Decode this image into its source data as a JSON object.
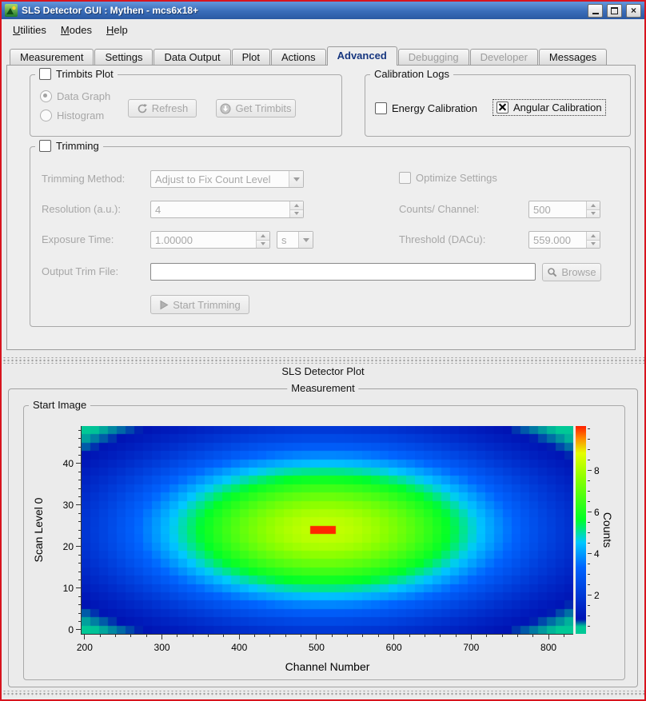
{
  "window": {
    "title": "SLS Detector GUI : Mythen - mcs6x18+"
  },
  "icons": {
    "app": "detector-logo",
    "minimize": "horizontal-bar",
    "maximize": "square-outline",
    "close": "x-mark",
    "refresh": "circular-arrow",
    "get_trimbits": "circled-down-arrow",
    "browse": "magnifier",
    "start_trimming": "play-triangle",
    "combo_arrow": "chevron-down",
    "spin_up": "triangle-up",
    "spin_down": "triangle-down",
    "checkbox_checked": "x-mark"
  },
  "menu": {
    "items": [
      {
        "label": "Utilities",
        "accel": 0
      },
      {
        "label": "Modes",
        "accel": 0
      },
      {
        "label": "Help",
        "accel": 0
      }
    ]
  },
  "tabs": [
    {
      "label": "Measurement",
      "state": "normal"
    },
    {
      "label": "Settings",
      "state": "normal"
    },
    {
      "label": "Data Output",
      "state": "normal"
    },
    {
      "label": "Plot",
      "state": "normal"
    },
    {
      "label": "Actions",
      "state": "normal"
    },
    {
      "label": "Advanced",
      "state": "selected"
    },
    {
      "label": "Debugging",
      "state": "disabled"
    },
    {
      "label": "Developer",
      "state": "disabled"
    },
    {
      "label": "Messages",
      "state": "normal"
    }
  ],
  "advanced": {
    "trimbits_plot": {
      "title": "Trimbits Plot",
      "checkbox_checked": false,
      "radio_data_graph": "Data Graph",
      "radio_data_graph_selected": true,
      "radio_histogram": "Histogram",
      "refresh_button": "Refresh",
      "get_trimbits_button": "Get Trimbits"
    },
    "calibration_logs": {
      "title": "Calibration Logs",
      "energy_label": "Energy Calibration",
      "energy_checked": false,
      "angular_label": "Angular Calibration",
      "angular_checked": true
    },
    "trimming": {
      "title": "Trimming",
      "checkbox_checked": false,
      "method_label": "Trimming Method:",
      "method_value": "Adjust to Fix Count Level",
      "optimize_label": "Optimize Settings",
      "optimize_checked": false,
      "resolution_label": "Resolution (a.u.):",
      "resolution_value": "4",
      "counts_label": "Counts/ Channel:",
      "counts_value": "500",
      "exposure_label": "Exposure Time:",
      "exposure_value": "1.00000",
      "exposure_unit": "s",
      "threshold_label": "Threshold (DACu):",
      "threshold_value": "559.000",
      "output_label": "Output Trim File:",
      "output_value": "",
      "browse_button": "Browse",
      "start_button": "Start Trimming"
    }
  },
  "plot_dock": {
    "title": "SLS Detector Plot"
  },
  "measurement": {
    "title": "Measurement",
    "start_image": {
      "title": "Start Image"
    }
  },
  "chart_data": {
    "type": "heatmap",
    "title": "Start Image",
    "xlabel": "Channel Number",
    "ylabel": "Scan Level 0",
    "colorbar_label": "Counts",
    "xlim": [
      196,
      832
    ],
    "ylim": [
      -1,
      49
    ],
    "zlim": [
      0.15,
      10.15
    ],
    "x_ticks": [
      200,
      300,
      400,
      500,
      600,
      700,
      800
    ],
    "x_minor_step": 20,
    "y_ticks": [
      0,
      10,
      20,
      30,
      40
    ],
    "y_minor_step": 2,
    "z_ticks": [
      2,
      4,
      6,
      8
    ],
    "z_minor_step": 0.5,
    "grid_nx": 56,
    "grid_ny": 25,
    "grid": false,
    "legend_position": "right-colorbar",
    "model": {
      "type": "gaussian2d",
      "amplitude": 8.4,
      "baseline": 0.0,
      "center_x": 511,
      "center_y": 24,
      "sigma_x": 180,
      "sigma_y": 14.2,
      "hotspot": {
        "x": 511,
        "y": 24,
        "half_width_x": 17,
        "half_width_y": 1,
        "value": 10.1
      }
    },
    "colormap": [
      [
        0.0,
        "#00c896"
      ],
      [
        0.035,
        "#00c896"
      ],
      [
        0.07,
        "#0014b4"
      ],
      [
        0.32,
        "#0064ff"
      ],
      [
        0.44,
        "#00c8ff"
      ],
      [
        0.55,
        "#00ff28"
      ],
      [
        0.75,
        "#8cff00"
      ],
      [
        0.87,
        "#e6ff00"
      ],
      [
        0.94,
        "#ff8c00"
      ],
      [
        1.0,
        "#ff1e00"
      ]
    ]
  }
}
